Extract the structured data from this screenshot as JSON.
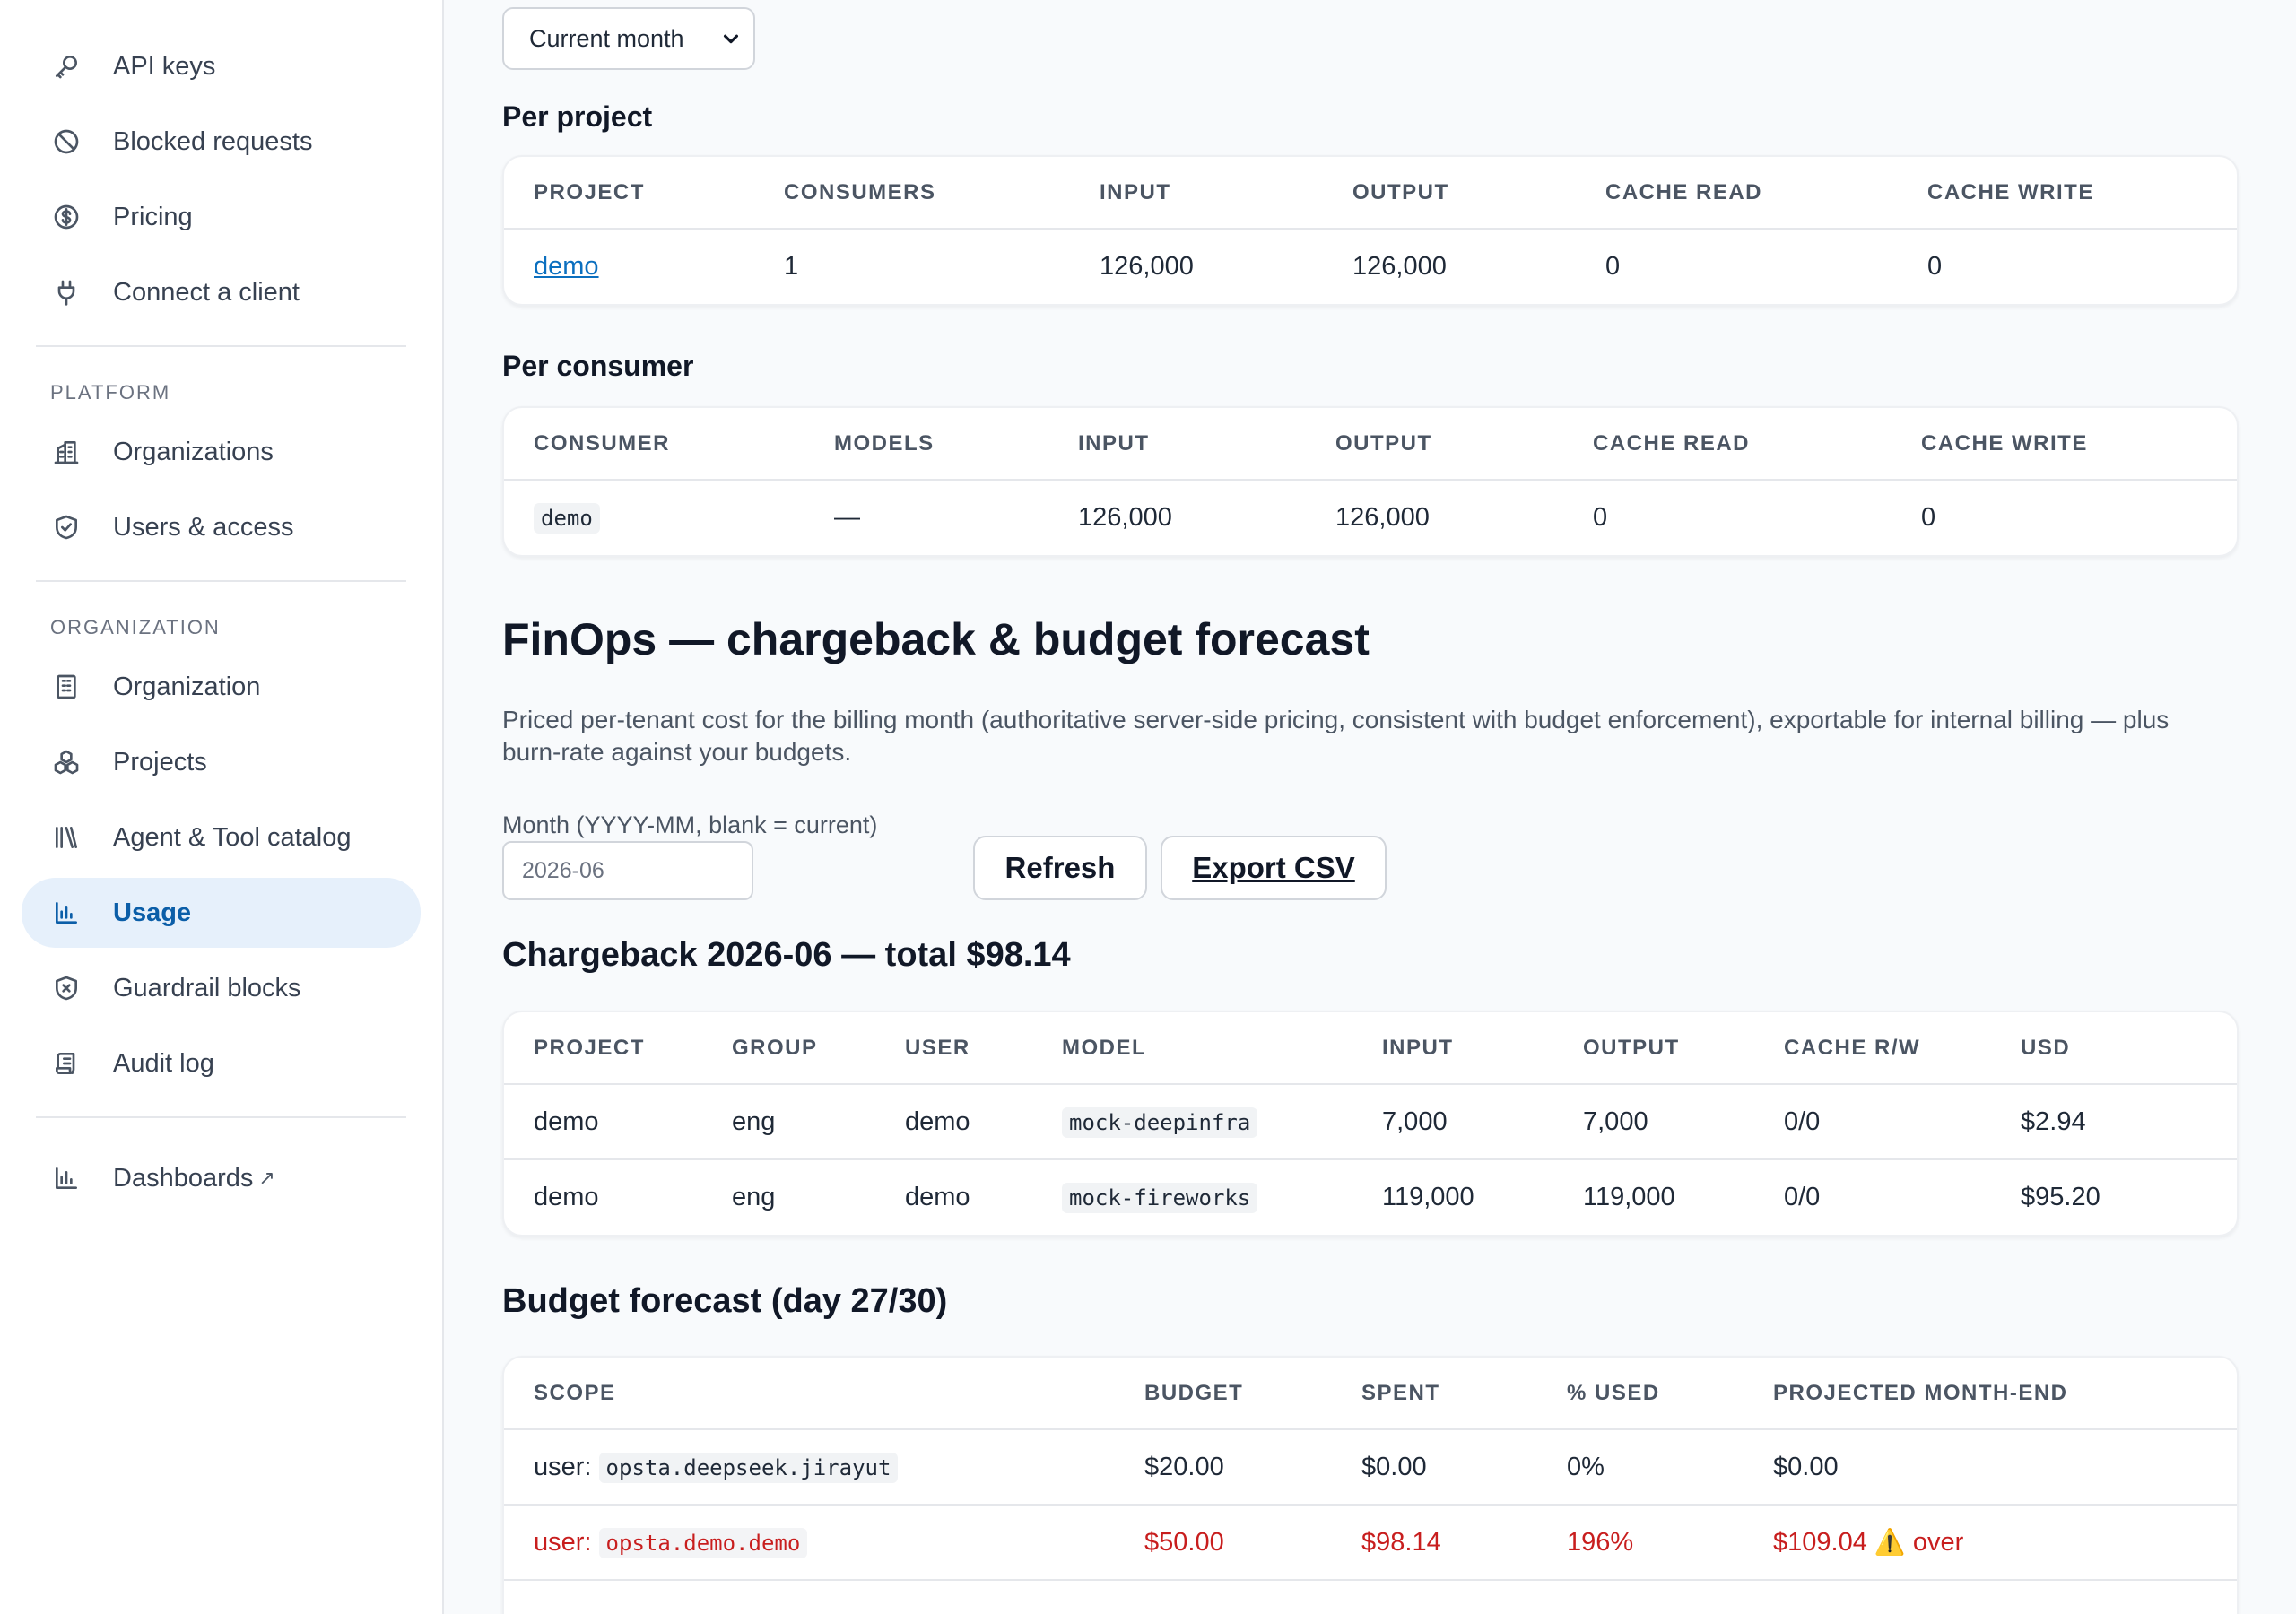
{
  "sidebar": {
    "top_items": [
      {
        "label": "API keys",
        "icon": "key-icon"
      },
      {
        "label": "Blocked requests",
        "icon": "blocked-icon"
      },
      {
        "label": "Pricing",
        "icon": "dollar-icon"
      },
      {
        "label": "Connect a client",
        "icon": "plug-icon"
      }
    ],
    "platform_label": "PLATFORM",
    "platform_items": [
      {
        "label": "Organizations",
        "icon": "buildings-icon"
      },
      {
        "label": "Users & access",
        "icon": "shield-check-icon"
      }
    ],
    "organization_label": "ORGANIZATION",
    "organization_items": [
      {
        "label": "Organization",
        "icon": "building-icon"
      },
      {
        "label": "Projects",
        "icon": "cubes-icon"
      },
      {
        "label": "Agent & Tool catalog",
        "icon": "library-icon"
      },
      {
        "label": "Usage",
        "icon": "bar-chart-icon",
        "active": true
      },
      {
        "label": "Guardrail blocks",
        "icon": "shield-x-icon"
      },
      {
        "label": "Audit log",
        "icon": "scroll-icon"
      }
    ],
    "dashboards": {
      "label": "Dashboards",
      "icon": "bar-chart-icon",
      "ext": "↗"
    }
  },
  "period": {
    "value": "Current month"
  },
  "per_project": {
    "title": "Per project",
    "headers": [
      "PROJECT",
      "CONSUMERS",
      "INPUT",
      "OUTPUT",
      "CACHE READ",
      "CACHE WRITE"
    ],
    "rows": [
      [
        "demo",
        "1",
        "126,000",
        "126,000",
        "0",
        "0"
      ]
    ]
  },
  "per_consumer": {
    "title": "Per consumer",
    "headers": [
      "CONSUMER",
      "MODELS",
      "INPUT",
      "OUTPUT",
      "CACHE READ",
      "CACHE WRITE"
    ],
    "rows": [
      [
        "demo",
        "—",
        "126,000",
        "126,000",
        "0",
        "0"
      ]
    ]
  },
  "finops": {
    "title": "FinOps — chargeback & budget forecast",
    "description": "Priced per-tenant cost for the billing month (authoritative server-side pricing, consistent with budget enforcement), exportable for internal billing — plus burn-rate against your budgets.",
    "month_label": "Month (YYYY-MM, blank = current)",
    "month_value": "2026-06",
    "refresh_label": "Refresh",
    "export_label": "Export CSV"
  },
  "chargeback": {
    "title": "Chargeback 2026-06 — total $98.14",
    "headers": [
      "PROJECT",
      "GROUP",
      "USER",
      "MODEL",
      "INPUT",
      "OUTPUT",
      "CACHE R/W",
      "USD"
    ],
    "rows": [
      [
        "demo",
        "eng",
        "demo",
        "mock-deepinfra",
        "7,000",
        "7,000",
        "0/0",
        "$2.94"
      ],
      [
        "demo",
        "eng",
        "demo",
        "mock-fireworks",
        "119,000",
        "119,000",
        "0/0",
        "$95.20"
      ]
    ]
  },
  "budget": {
    "title": "Budget forecast (day 27/30)",
    "headers": [
      "SCOPE",
      "BUDGET",
      "SPENT",
      "% USED",
      "PROJECTED MONTH-END"
    ],
    "rows": [
      {
        "scope_prefix": "user:",
        "scope": "opsta.deepseek.jirayut",
        "budget": "$20.00",
        "spent": "$0.00",
        "used": "0%",
        "projected": "$0.00",
        "warn": false
      },
      {
        "scope_prefix": "user:",
        "scope": "opsta.demo.demo",
        "budget": "$50.00",
        "spent": "$98.14",
        "used": "196%",
        "projected": "$109.04",
        "warn": true,
        "warn_icon": "⚠️",
        "warn_text": "over"
      }
    ]
  }
}
